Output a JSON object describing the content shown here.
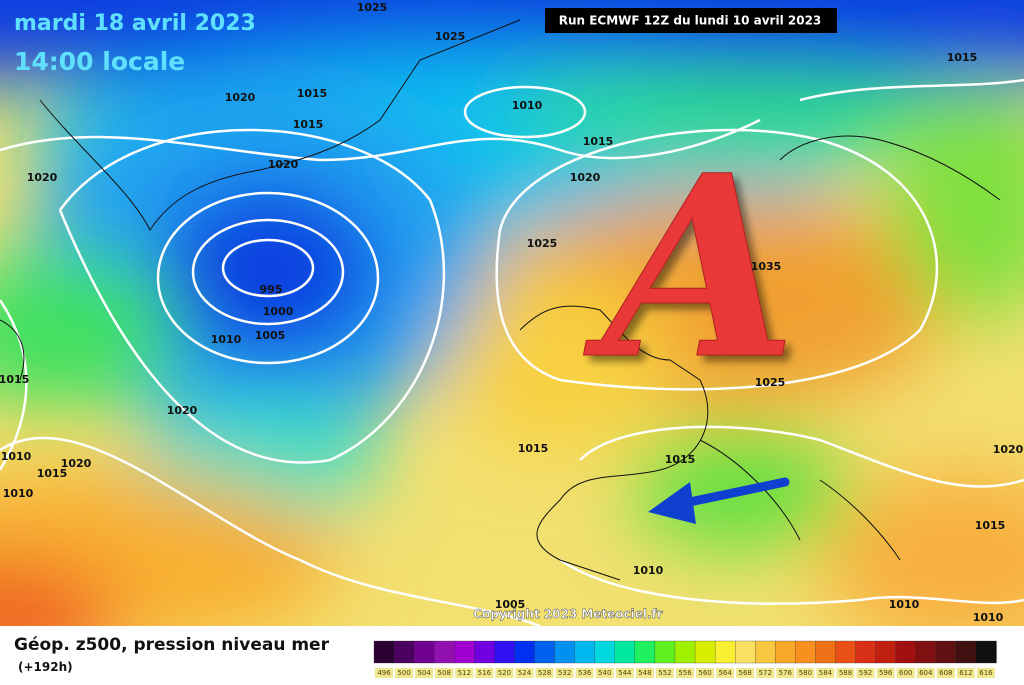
{
  "header": {
    "date": "mardi 18 avril 2023",
    "time": "14:00 locale",
    "run": "Run ECMWF 12Z du lundi 10 avril 2023"
  },
  "map": {
    "anticyclone": "A",
    "copyright": "Copyright 2023 Meteociel.fr",
    "isobars": [
      1025,
      1025,
      1015,
      1020,
      1015,
      1015,
      1010,
      1015,
      1020,
      1020,
      1020,
      1025,
      1035,
      995,
      1000,
      1005,
      1010,
      1015,
      1025,
      1020,
      1015,
      1015,
      1010,
      1020,
      1015,
      1010,
      1020,
      1015,
      1010,
      1005,
      1010,
      1010
    ]
  },
  "legend": {
    "title": "Géop. z500, pression niveau mer",
    "lead": "(+192h)",
    "labels": [
      496,
      500,
      504,
      508,
      512,
      516,
      520,
      524,
      528,
      532,
      536,
      540,
      544,
      548,
      552,
      556,
      560,
      564,
      568,
      572,
      576,
      580,
      584,
      588,
      592,
      596,
      600,
      604,
      608,
      612,
      616
    ],
    "colors": [
      "#2a0030",
      "#4b0060",
      "#700090",
      "#9010b0",
      "#a000d0",
      "#7000e0",
      "#3010f0",
      "#0030f0",
      "#0060f0",
      "#0090f0",
      "#00b8f0",
      "#00d8e0",
      "#00e8a0",
      "#20f060",
      "#60f020",
      "#a0f000",
      "#d8f000",
      "#f8f030",
      "#f8e060",
      "#f8c840",
      "#f8a828",
      "#f89020",
      "#f07018",
      "#e85018",
      "#d83018",
      "#c02010",
      "#a01010",
      "#801010",
      "#601010",
      "#401010",
      "#101010"
    ]
  }
}
